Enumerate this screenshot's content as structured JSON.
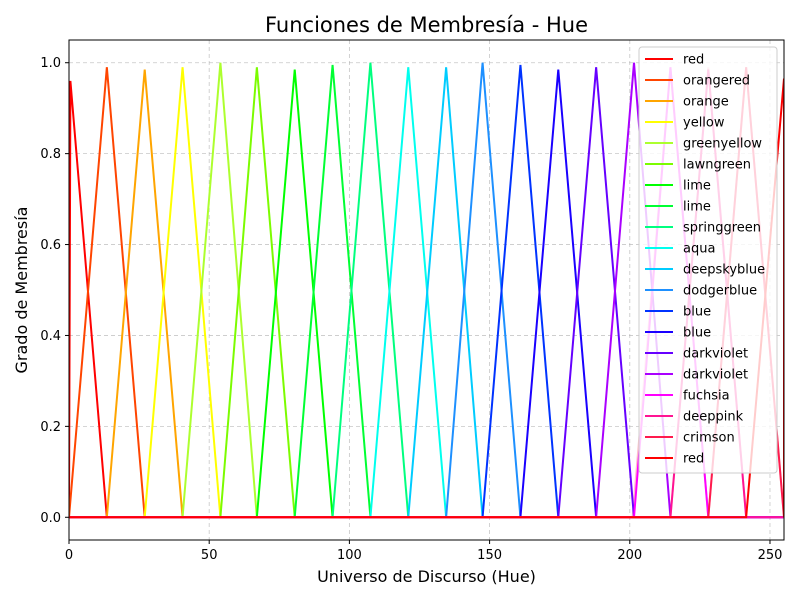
{
  "chart_data": {
    "type": "line",
    "title": "Funciones de Membresía - Hue",
    "xlabel": "Universo de Discurso (Hue)",
    "ylabel": "Grado de Membresía",
    "xlim": [
      0,
      255
    ],
    "ylim": [
      -0.05,
      1.05
    ],
    "xticks": [
      0,
      50,
      100,
      150,
      200,
      250
    ],
    "yticks": [
      0.0,
      0.2,
      0.4,
      0.6,
      0.8,
      1.0
    ],
    "grid": true,
    "legend_position": "top-right",
    "series": [
      {
        "name": "red",
        "color": "#ff0000",
        "x": [
          0,
          0.5,
          13.5
        ],
        "y": [
          0,
          0.96,
          0
        ]
      },
      {
        "name": "orangered",
        "color": "#ff4500",
        "x": [
          0,
          13.5,
          27
        ],
        "y": [
          0,
          0.99,
          0
        ]
      },
      {
        "name": "orange",
        "color": "#ffa500",
        "x": [
          13.5,
          27,
          40.5
        ],
        "y": [
          0,
          0.985,
          0
        ]
      },
      {
        "name": "yellow",
        "color": "#ffff00",
        "x": [
          27,
          40.5,
          54
        ],
        "y": [
          0,
          0.99,
          0
        ]
      },
      {
        "name": "greenyellow",
        "color": "#adff2f",
        "x": [
          40.5,
          54,
          67
        ],
        "y": [
          0,
          1.0,
          0
        ]
      },
      {
        "name": "lawngreen",
        "color": "#7cfc00",
        "x": [
          54,
          67,
          80.5
        ],
        "y": [
          0,
          0.99,
          0
        ]
      },
      {
        "name": "lime",
        "color": "#00ff00",
        "x": [
          67,
          80.5,
          94
        ],
        "y": [
          0,
          0.985,
          0
        ]
      },
      {
        "name": "lime",
        "color": "#00ff33",
        "x": [
          80.5,
          94,
          107.5
        ],
        "y": [
          0,
          0.995,
          0
        ]
      },
      {
        "name": "springgreen",
        "color": "#00ff7f",
        "x": [
          94,
          107.5,
          121
        ],
        "y": [
          0,
          1.0,
          0
        ]
      },
      {
        "name": "aqua",
        "color": "#00ffee",
        "x": [
          107.5,
          121,
          134.5
        ],
        "y": [
          0,
          0.99,
          0
        ]
      },
      {
        "name": "deepskyblue",
        "color": "#00ccff",
        "x": [
          121,
          134.5,
          147.5
        ],
        "y": [
          0,
          0.99,
          0
        ]
      },
      {
        "name": "dodgerblue",
        "color": "#1e90ff",
        "x": [
          134.5,
          147.5,
          161
        ],
        "y": [
          0,
          1.0,
          0
        ]
      },
      {
        "name": "blue",
        "color": "#0033ff",
        "x": [
          147.5,
          161,
          174.5
        ],
        "y": [
          0,
          0.995,
          0
        ]
      },
      {
        "name": "blue",
        "color": "#1a00ff",
        "x": [
          161,
          174.5,
          188
        ],
        "y": [
          0,
          0.985,
          0
        ]
      },
      {
        "name": "darkviolet",
        "color": "#6600ff",
        "x": [
          174.5,
          188,
          201.5
        ],
        "y": [
          0,
          0.99,
          0
        ]
      },
      {
        "name": "darkviolet",
        "color": "#aa00ff",
        "x": [
          188,
          201.5,
          214.5
        ],
        "y": [
          0,
          1.0,
          0
        ]
      },
      {
        "name": "fuchsia",
        "color": "#ff00ff",
        "x": [
          201.5,
          214.5,
          228
        ],
        "y": [
          0,
          0.99,
          0
        ]
      },
      {
        "name": "deeppink",
        "color": "#ff1493",
        "x": [
          214.5,
          228,
          241.5
        ],
        "y": [
          0,
          0.985,
          0
        ]
      },
      {
        "name": "crimson",
        "color": "#ff1a4d",
        "x": [
          228,
          241.5,
          255
        ],
        "y": [
          0,
          0.99,
          0
        ]
      },
      {
        "name": "red",
        "color": "#ff0000",
        "x": [
          241.5,
          255,
          255
        ],
        "y": [
          0,
          0.965,
          0
        ]
      }
    ],
    "background_peaks_color": "#ffc0cb"
  }
}
